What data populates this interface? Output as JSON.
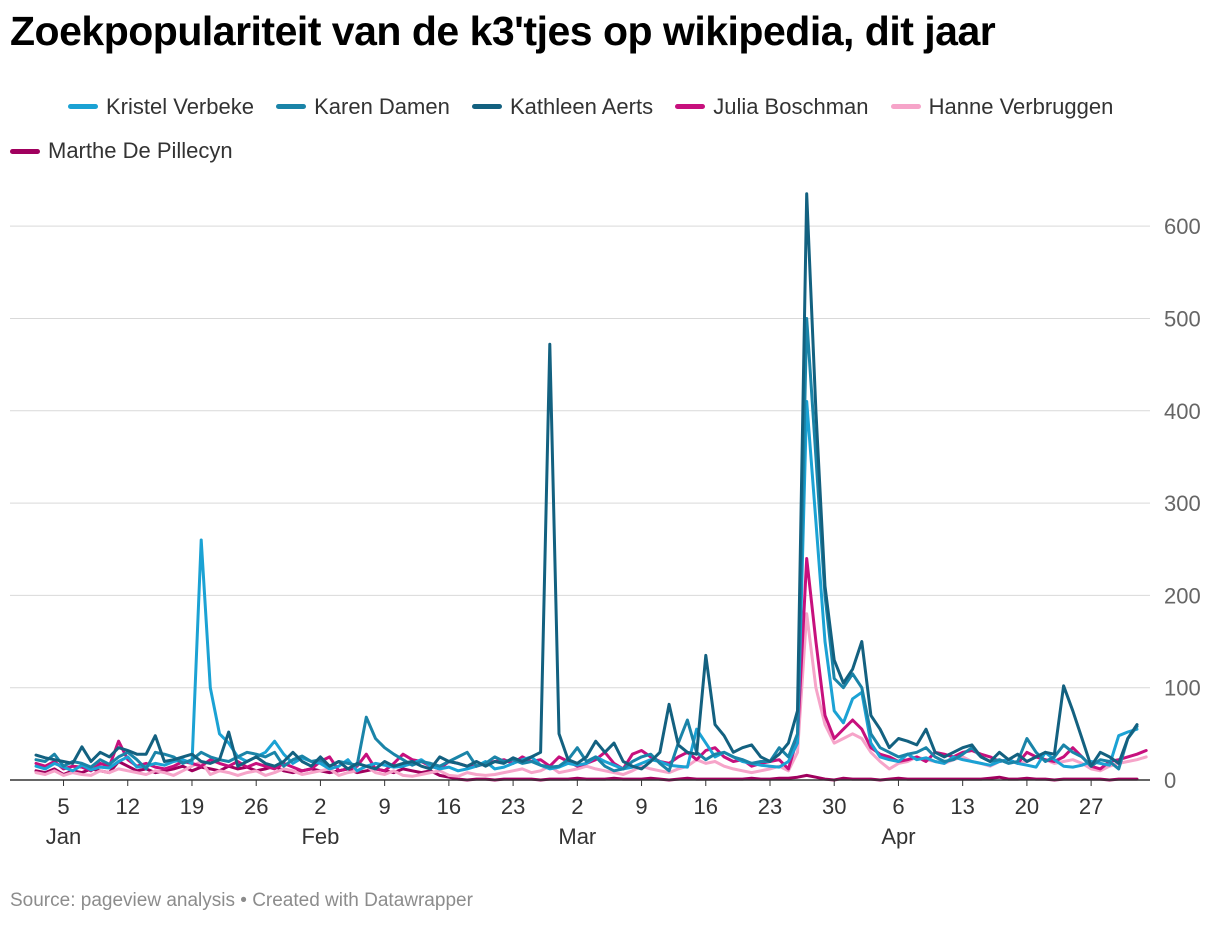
{
  "header": {
    "title": "Zoekpopulariteit van de k3'tjes op wikipedia, dit jaar"
  },
  "footer": {
    "source": "Source: pageview analysis",
    "separator": "•",
    "credit": "Created with Datawrapper"
  },
  "chart_data": {
    "type": "line",
    "title": "Zoekpopulariteit van de k3'tjes op wikipedia, dit jaar",
    "xlabel": "",
    "ylabel": "",
    "ylim": [
      0,
      650
    ],
    "y_ticks": [
      0,
      100,
      200,
      300,
      400,
      500,
      600
    ],
    "y_axis_side": "right",
    "x_start_day": 2,
    "x_end_day": 30,
    "x_ticks": [
      {
        "day": 5,
        "label": "5",
        "month": "Jan"
      },
      {
        "day": 12,
        "label": "12",
        "month": ""
      },
      {
        "day": 19,
        "label": "19",
        "month": ""
      },
      {
        "day": 26,
        "label": "26",
        "month": ""
      },
      {
        "day": 33,
        "label": "2",
        "month": "Feb"
      },
      {
        "day": 40,
        "label": "9",
        "month": ""
      },
      {
        "day": 47,
        "label": "16",
        "month": ""
      },
      {
        "day": 54,
        "label": "23",
        "month": ""
      },
      {
        "day": 61,
        "label": "2",
        "month": "Mar"
      },
      {
        "day": 68,
        "label": "9",
        "month": ""
      },
      {
        "day": 75,
        "label": "16",
        "month": ""
      },
      {
        "day": 82,
        "label": "23",
        "month": ""
      },
      {
        "day": 89,
        "label": "30",
        "month": ""
      },
      {
        "day": 96,
        "label": "6",
        "month": "Apr"
      },
      {
        "day": 103,
        "label": "13",
        "month": ""
      },
      {
        "day": 110,
        "label": "20",
        "month": ""
      },
      {
        "day": 117,
        "label": "27",
        "month": ""
      }
    ],
    "series": [
      {
        "name": "Kristel Verbeke",
        "color": "#1ba2d4",
        "values": [
          15,
          12,
          18,
          14,
          10,
          16,
          11,
          14,
          13,
          20,
          25,
          14,
          15,
          18,
          16,
          20,
          22,
          18,
          260,
          100,
          50,
          40,
          25,
          20,
          25,
          30,
          42,
          28,
          18,
          24,
          20,
          18,
          12,
          15,
          22,
          10,
          15,
          18,
          16,
          14,
          15,
          18,
          22,
          15,
          12,
          14,
          10,
          12,
          15,
          20,
          12,
          14,
          18,
          22,
          25,
          16,
          12,
          14,
          18,
          16,
          18,
          25,
          20,
          16,
          12,
          14,
          18,
          22,
          20,
          16,
          15,
          14,
          55,
          40,
          25,
          30,
          25,
          20,
          18,
          16,
          15,
          14,
          20,
          40,
          410,
          280,
          150,
          75,
          62,
          88,
          95,
          40,
          25,
          22,
          20,
          28,
          22,
          24,
          20,
          18,
          25,
          22,
          20,
          18,
          16,
          20,
          22,
          18,
          16,
          14,
          30,
          22,
          15,
          14,
          16,
          20,
          18,
          16,
          48,
          52,
          55
        ]
      },
      {
        "name": "Karen Damen",
        "color": "#1a84a8",
        "values": [
          22,
          20,
          28,
          15,
          20,
          18,
          14,
          22,
          17,
          25,
          30,
          22,
          12,
          30,
          28,
          25,
          18,
          22,
          30,
          25,
          22,
          20,
          25,
          30,
          28,
          25,
          30,
          15,
          22,
          26,
          20,
          22,
          15,
          20,
          18,
          16,
          68,
          45,
          35,
          28,
          22,
          16,
          20,
          18,
          15,
          20,
          25,
          30,
          15,
          18,
          25,
          20,
          22,
          18,
          20,
          16,
          14,
          15,
          22,
          35,
          20,
          25,
          15,
          10,
          12,
          20,
          25,
          28,
          18,
          10,
          40,
          65,
          30,
          22,
          28,
          30,
          25,
          22,
          18,
          20,
          20,
          35,
          25,
          50,
          500,
          350,
          200,
          110,
          100,
          115,
          100,
          50,
          35,
          30,
          25,
          28,
          30,
          35,
          25,
          20,
          22,
          28,
          35,
          25,
          20,
          22,
          18,
          20,
          45,
          30,
          20,
          25,
          38,
          30,
          25,
          15,
          22,
          20,
          12,
          45,
          58
        ]
      },
      {
        "name": "Kathleen Aerts",
        "color": "#136180",
        "values": [
          27,
          24,
          22,
          20,
          18,
          36,
          20,
          30,
          25,
          35,
          32,
          28,
          28,
          48,
          20,
          22,
          25,
          28,
          20,
          18,
          22,
          52,
          15,
          20,
          25,
          18,
          15,
          20,
          30,
          20,
          15,
          25,
          15,
          20,
          12,
          18,
          15,
          12,
          20,
          15,
          18,
          20,
          15,
          12,
          25,
          20,
          18,
          15,
          20,
          15,
          20,
          18,
          24,
          20,
          25,
          30,
          472,
          50,
          22,
          18,
          25,
          42,
          30,
          40,
          20,
          15,
          12,
          20,
          30,
          82,
          38,
          30,
          28,
          135,
          60,
          48,
          30,
          35,
          38,
          25,
          20,
          28,
          40,
          75,
          635,
          400,
          210,
          130,
          105,
          120,
          150,
          70,
          55,
          35,
          45,
          42,
          38,
          55,
          30,
          25,
          30,
          35,
          38,
          25,
          20,
          30,
          22,
          28,
          20,
          25,
          30,
          28,
          102,
          75,
          45,
          15,
          30,
          25,
          18,
          45,
          60
        ]
      },
      {
        "name": "Julia Boschman",
        "color": "#c7107d",
        "values": [
          18,
          15,
          20,
          12,
          15,
          14,
          10,
          18,
          15,
          42,
          22,
          15,
          18,
          14,
          12,
          15,
          20,
          18,
          15,
          22,
          18,
          15,
          20,
          14,
          18,
          15,
          12,
          18,
          14,
          10,
          12,
          20,
          25,
          10,
          12,
          15,
          28,
          12,
          10,
          18,
          28,
          22,
          20,
          15,
          12,
          20,
          18,
          15,
          15,
          18,
          20,
          22,
          18,
          25,
          20,
          22,
          15,
          25,
          20,
          15,
          18,
          22,
          30,
          18,
          12,
          28,
          32,
          25,
          20,
          18,
          25,
          30,
          22,
          32,
          35,
          25,
          20,
          22,
          15,
          18,
          20,
          22,
          12,
          45,
          240,
          150,
          70,
          45,
          55,
          65,
          55,
          35,
          28,
          25,
          20,
          22,
          25,
          20,
          30,
          28,
          25,
          30,
          32,
          28,
          25,
          20,
          22,
          18,
          30,
          25,
          22,
          20,
          25,
          35,
          25,
          15,
          12,
          20,
          22,
          25,
          28,
          32
        ]
      },
      {
        "name": "Hanne Verbruggen",
        "color": "#f6a4c9",
        "values": [
          8,
          6,
          10,
          5,
          8,
          6,
          5,
          10,
          8,
          12,
          10,
          8,
          6,
          10,
          8,
          5,
          10,
          15,
          20,
          6,
          10,
          8,
          5,
          8,
          10,
          5,
          8,
          12,
          10,
          6,
          8,
          10,
          12,
          5,
          8,
          10,
          15,
          8,
          6,
          10,
          5,
          4,
          6,
          8,
          10,
          5,
          4,
          8,
          6,
          5,
          6,
          8,
          10,
          12,
          8,
          10,
          15,
          8,
          10,
          12,
          15,
          12,
          10,
          8,
          6,
          10,
          15,
          12,
          10,
          8,
          12,
          15,
          22,
          18,
          20,
          15,
          12,
          10,
          8,
          10,
          12,
          15,
          10,
          30,
          180,
          100,
          60,
          40,
          45,
          50,
          45,
          30,
          20,
          12,
          18,
          20,
          25,
          22,
          20,
          18,
          22,
          25,
          20,
          18,
          15,
          20,
          22,
          18,
          20,
          25,
          22,
          18,
          20,
          22,
          18,
          12,
          10,
          15,
          18,
          20,
          22,
          25
        ]
      },
      {
        "name": "Marthe De Pillecyn",
        "color": "#a0005e",
        "values": [
          10,
          8,
          12,
          6,
          10,
          8,
          12,
          10,
          8,
          20,
          15,
          10,
          12,
          8,
          10,
          12,
          15,
          10,
          14,
          12,
          10,
          15,
          12,
          14,
          10,
          12,
          15,
          10,
          8,
          10,
          12,
          10,
          8,
          10,
          12,
          8,
          10,
          12,
          10,
          8,
          12,
          10,
          8,
          10,
          5,
          3,
          1,
          0,
          1,
          1,
          0,
          1,
          1,
          1,
          1,
          0,
          1,
          1,
          1,
          2,
          1,
          1,
          1,
          2,
          1,
          1,
          1,
          2,
          1,
          0,
          1,
          2,
          1,
          1,
          1,
          1,
          1,
          1,
          2,
          1,
          1,
          2,
          2,
          3,
          5,
          3,
          1,
          0,
          2,
          1,
          1,
          1,
          0,
          1,
          2,
          1,
          1,
          1,
          1,
          1,
          1,
          1,
          1,
          1,
          2,
          3,
          1,
          1,
          2,
          1,
          1,
          0,
          1,
          1,
          1,
          1,
          1,
          0,
          1,
          1,
          1
        ]
      }
    ]
  }
}
